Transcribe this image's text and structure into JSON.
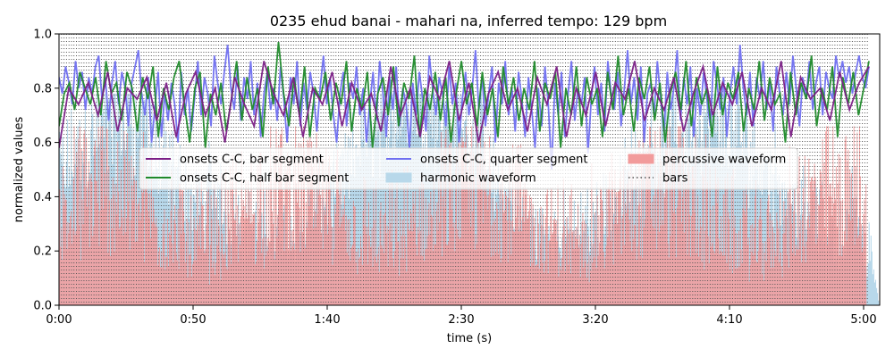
{
  "chart_data": {
    "type": "line",
    "title": "0235 ehud banai - mahari na, inferred tempo: 129 bpm",
    "xlabel": "time (s)",
    "ylabel": "normalized values",
    "xlim": [
      0,
      306
    ],
    "ylim": [
      0,
      1.0
    ],
    "x_ticks": [
      {
        "value": 0,
        "label": "0:00"
      },
      {
        "value": 50,
        "label": "0:50"
      },
      {
        "value": 100,
        "label": "1:40"
      },
      {
        "value": 150,
        "label": "2:30"
      },
      {
        "value": 200,
        "label": "3:20"
      },
      {
        "value": 250,
        "label": "4:10"
      },
      {
        "value": 300,
        "label": "5:00"
      }
    ],
    "y_ticks": [
      {
        "value": 0.0,
        "label": "0.0"
      },
      {
        "value": 0.2,
        "label": "0.2"
      },
      {
        "value": 0.4,
        "label": "0.4"
      },
      {
        "value": 0.6,
        "label": "0.6"
      },
      {
        "value": 0.8,
        "label": "0.8"
      },
      {
        "value": 1.0,
        "label": "1.0"
      }
    ],
    "legend": {
      "placement": "upper-center",
      "columns": 3,
      "entries": [
        {
          "label": "onsets C-C, bar segment",
          "kind": "line",
          "color": "#7b1f86"
        },
        {
          "label": "onsets C-C, half bar segment",
          "kind": "line",
          "color": "#1f8a2a"
        },
        {
          "label": "onsets C-C, quarter segment",
          "kind": "line",
          "color": "#6f6ff0"
        },
        {
          "label": "harmonic waveform",
          "kind": "patch",
          "color": "#b8d8ea"
        },
        {
          "label": "percussive waveform",
          "kind": "patch",
          "color": "#f29b9b"
        },
        {
          "label": "bars",
          "kind": "dotted",
          "color": "#555555"
        }
      ]
    },
    "bars": {
      "start": 0,
      "end": 302,
      "bpm": 129,
      "beats_per_bar": 2
    },
    "series": [
      {
        "name": "onsets C-C, quarter segment",
        "x_start": 0,
        "x_end": 302,
        "color": "#6f6ff0",
        "values": [
          0.84,
          0.78,
          0.88,
          0.82,
          0.74,
          0.9,
          0.8,
          0.86,
          0.72,
          0.84,
          0.78,
          0.88,
          0.92,
          0.76,
          0.84,
          0.68,
          0.82,
          0.9,
          0.74,
          0.86,
          0.8,
          0.66,
          0.82,
          0.88,
          0.94,
          0.78,
          0.7,
          0.84,
          0.6,
          0.72,
          0.86,
          0.62,
          0.78,
          0.68,
          0.82,
          0.74,
          0.6,
          0.86,
          0.7,
          0.8,
          0.64,
          0.76,
          0.9,
          0.7,
          0.84,
          0.78,
          0.66,
          0.92,
          0.82,
          0.74,
          0.86,
          0.96,
          0.8,
          0.72,
          0.88,
          0.68,
          0.84,
          0.76,
          0.9,
          0.7,
          0.82,
          0.62,
          0.78,
          0.86,
          0.72,
          0.8,
          0.68,
          0.88,
          0.76,
          0.6,
          0.84,
          0.74,
          0.9,
          0.66,
          0.82,
          0.72,
          0.86,
          0.78,
          0.64,
          0.8,
          0.92,
          0.74,
          0.84,
          0.7,
          0.6,
          0.78,
          0.86,
          0.66,
          0.82,
          0.76,
          0.88,
          0.7,
          0.8,
          0.6,
          0.74,
          0.86,
          0.68,
          0.9,
          0.78,
          0.62,
          0.84,
          0.72,
          0.88,
          0.66,
          0.8,
          0.74,
          0.58,
          0.82,
          0.7,
          0.86,
          0.76,
          0.64,
          0.92,
          0.8,
          0.7,
          0.84,
          0.78,
          0.66,
          0.88,
          0.74,
          0.82,
          0.6,
          0.76,
          0.86,
          0.7,
          0.8,
          0.94,
          0.72,
          0.84,
          0.66,
          0.78,
          0.88,
          0.6,
          0.82,
          0.74,
          0.9,
          0.7,
          0.8,
          0.64,
          0.86,
          0.76,
          0.62,
          0.84,
          0.72,
          0.58,
          0.8,
          0.66,
          0.88,
          0.74,
          0.5,
          0.82,
          0.7,
          0.86,
          0.62,
          0.78,
          0.9,
          0.68,
          0.8,
          0.74,
          0.84,
          0.56,
          0.76,
          0.88,
          0.7,
          0.82,
          0.64,
          0.9,
          0.78,
          0.72,
          0.86,
          0.66,
          0.8,
          0.94,
          0.74,
          0.84,
          0.68,
          0.88,
          0.6,
          0.78,
          0.82,
          0.7,
          0.9,
          0.76,
          0.64,
          0.86,
          0.72,
          0.8,
          0.94,
          0.68,
          0.84,
          0.74,
          0.88,
          0.62,
          0.8,
          0.7,
          0.86,
          0.76,
          0.66,
          0.9,
          0.82,
          0.72,
          0.84,
          0.62,
          0.78,
          0.88,
          0.74,
          0.96,
          0.8,
          0.7,
          0.86,
          0.66,
          0.84,
          0.76,
          0.9,
          0.72,
          0.82,
          0.64,
          0.88,
          0.78,
          0.7,
          0.86,
          0.74,
          0.92,
          0.8,
          0.66,
          0.84,
          0.76,
          0.9,
          0.72,
          0.82,
          0.88,
          0.7,
          0.86,
          0.8,
          0.76,
          0.92,
          0.84,
          0.9,
          0.82,
          0.88,
          0.78,
          0.86,
          0.92,
          0.84,
          0.8,
          0.88
        ]
      },
      {
        "name": "onsets C-C, half bar segment",
        "x_start": 0,
        "x_end": 302,
        "color": "#1f8a2a",
        "values": [
          0.66,
          0.78,
          0.82,
          0.72,
          0.86,
          0.8,
          0.74,
          0.84,
          0.7,
          0.9,
          0.78,
          0.82,
          0.68,
          0.86,
          0.8,
          0.64,
          0.84,
          0.76,
          0.88,
          0.62,
          0.8,
          0.72,
          0.84,
          0.9,
          0.74,
          0.6,
          0.8,
          0.86,
          0.58,
          0.78,
          0.7,
          0.82,
          0.64,
          0.76,
          0.9,
          0.68,
          0.84,
          0.72,
          0.8,
          0.62,
          0.88,
          0.74,
          0.97,
          0.78,
          0.66,
          0.84,
          0.7,
          0.88,
          0.62,
          0.8,
          0.76,
          0.86,
          0.68,
          0.82,
          0.74,
          0.9,
          0.64,
          0.8,
          0.72,
          0.86,
          0.58,
          0.78,
          0.84,
          0.7,
          0.88,
          0.66,
          0.82,
          0.76,
          0.92,
          0.62,
          0.8,
          0.72,
          0.86,
          0.68,
          0.84,
          0.6,
          0.78,
          0.9,
          0.74,
          0.82,
          0.66,
          0.86,
          0.7,
          0.8,
          0.62,
          0.88,
          0.74,
          0.84,
          0.68,
          0.8,
          0.72,
          0.9,
          0.64,
          0.82,
          0.76,
          0.86,
          0.58,
          0.8,
          0.7,
          0.88,
          0.66,
          0.84,
          0.74,
          0.8,
          0.62,
          0.86,
          0.72,
          0.92,
          0.7,
          0.8,
          0.64,
          0.84,
          0.76,
          0.88,
          0.68,
          0.82,
          0.6,
          0.78,
          0.86,
          0.72,
          0.9,
          0.66,
          0.84,
          0.74,
          0.8,
          0.62,
          0.88,
          0.7,
          0.82,
          0.76,
          0.86,
          0.64,
          0.8,
          0.72,
          0.9,
          0.68,
          0.84,
          0.74,
          0.78,
          0.6,
          0.86,
          0.7,
          0.82,
          0.76,
          0.92,
          0.66,
          0.8,
          0.72,
          0.88,
          0.62,
          0.84,
          0.74,
          0.86,
          0.7,
          0.8,
          0.9
        ]
      },
      {
        "name": "onsets C-C, bar segment",
        "x_start": 0,
        "x_end": 302,
        "color": "#7b1f86",
        "values": [
          0.58,
          0.8,
          0.74,
          0.82,
          0.7,
          0.86,
          0.64,
          0.8,
          0.76,
          0.84,
          0.68,
          0.82,
          0.62,
          0.78,
          0.86,
          0.7,
          0.8,
          0.6,
          0.84,
          0.74,
          0.66,
          0.9,
          0.78,
          0.7,
          0.84,
          0.62,
          0.8,
          0.74,
          0.86,
          0.66,
          0.82,
          0.72,
          0.78,
          0.64,
          0.88,
          0.7,
          0.8,
          0.62,
          0.84,
          0.76,
          0.9,
          0.68,
          0.82,
          0.6,
          0.78,
          0.86,
          0.72,
          0.8,
          0.64,
          0.84,
          0.74,
          0.88,
          0.62,
          0.8,
          0.7,
          0.86,
          0.66,
          0.82,
          0.76,
          0.9,
          0.68,
          0.8,
          0.72,
          0.84,
          0.64,
          0.78,
          0.88,
          0.7,
          0.82,
          0.74,
          0.86,
          0.66,
          0.8,
          0.72,
          0.9,
          0.62,
          0.84,
          0.76,
          0.8,
          0.68,
          0.86,
          0.72,
          0.82,
          0.88
        ]
      }
    ]
  }
}
